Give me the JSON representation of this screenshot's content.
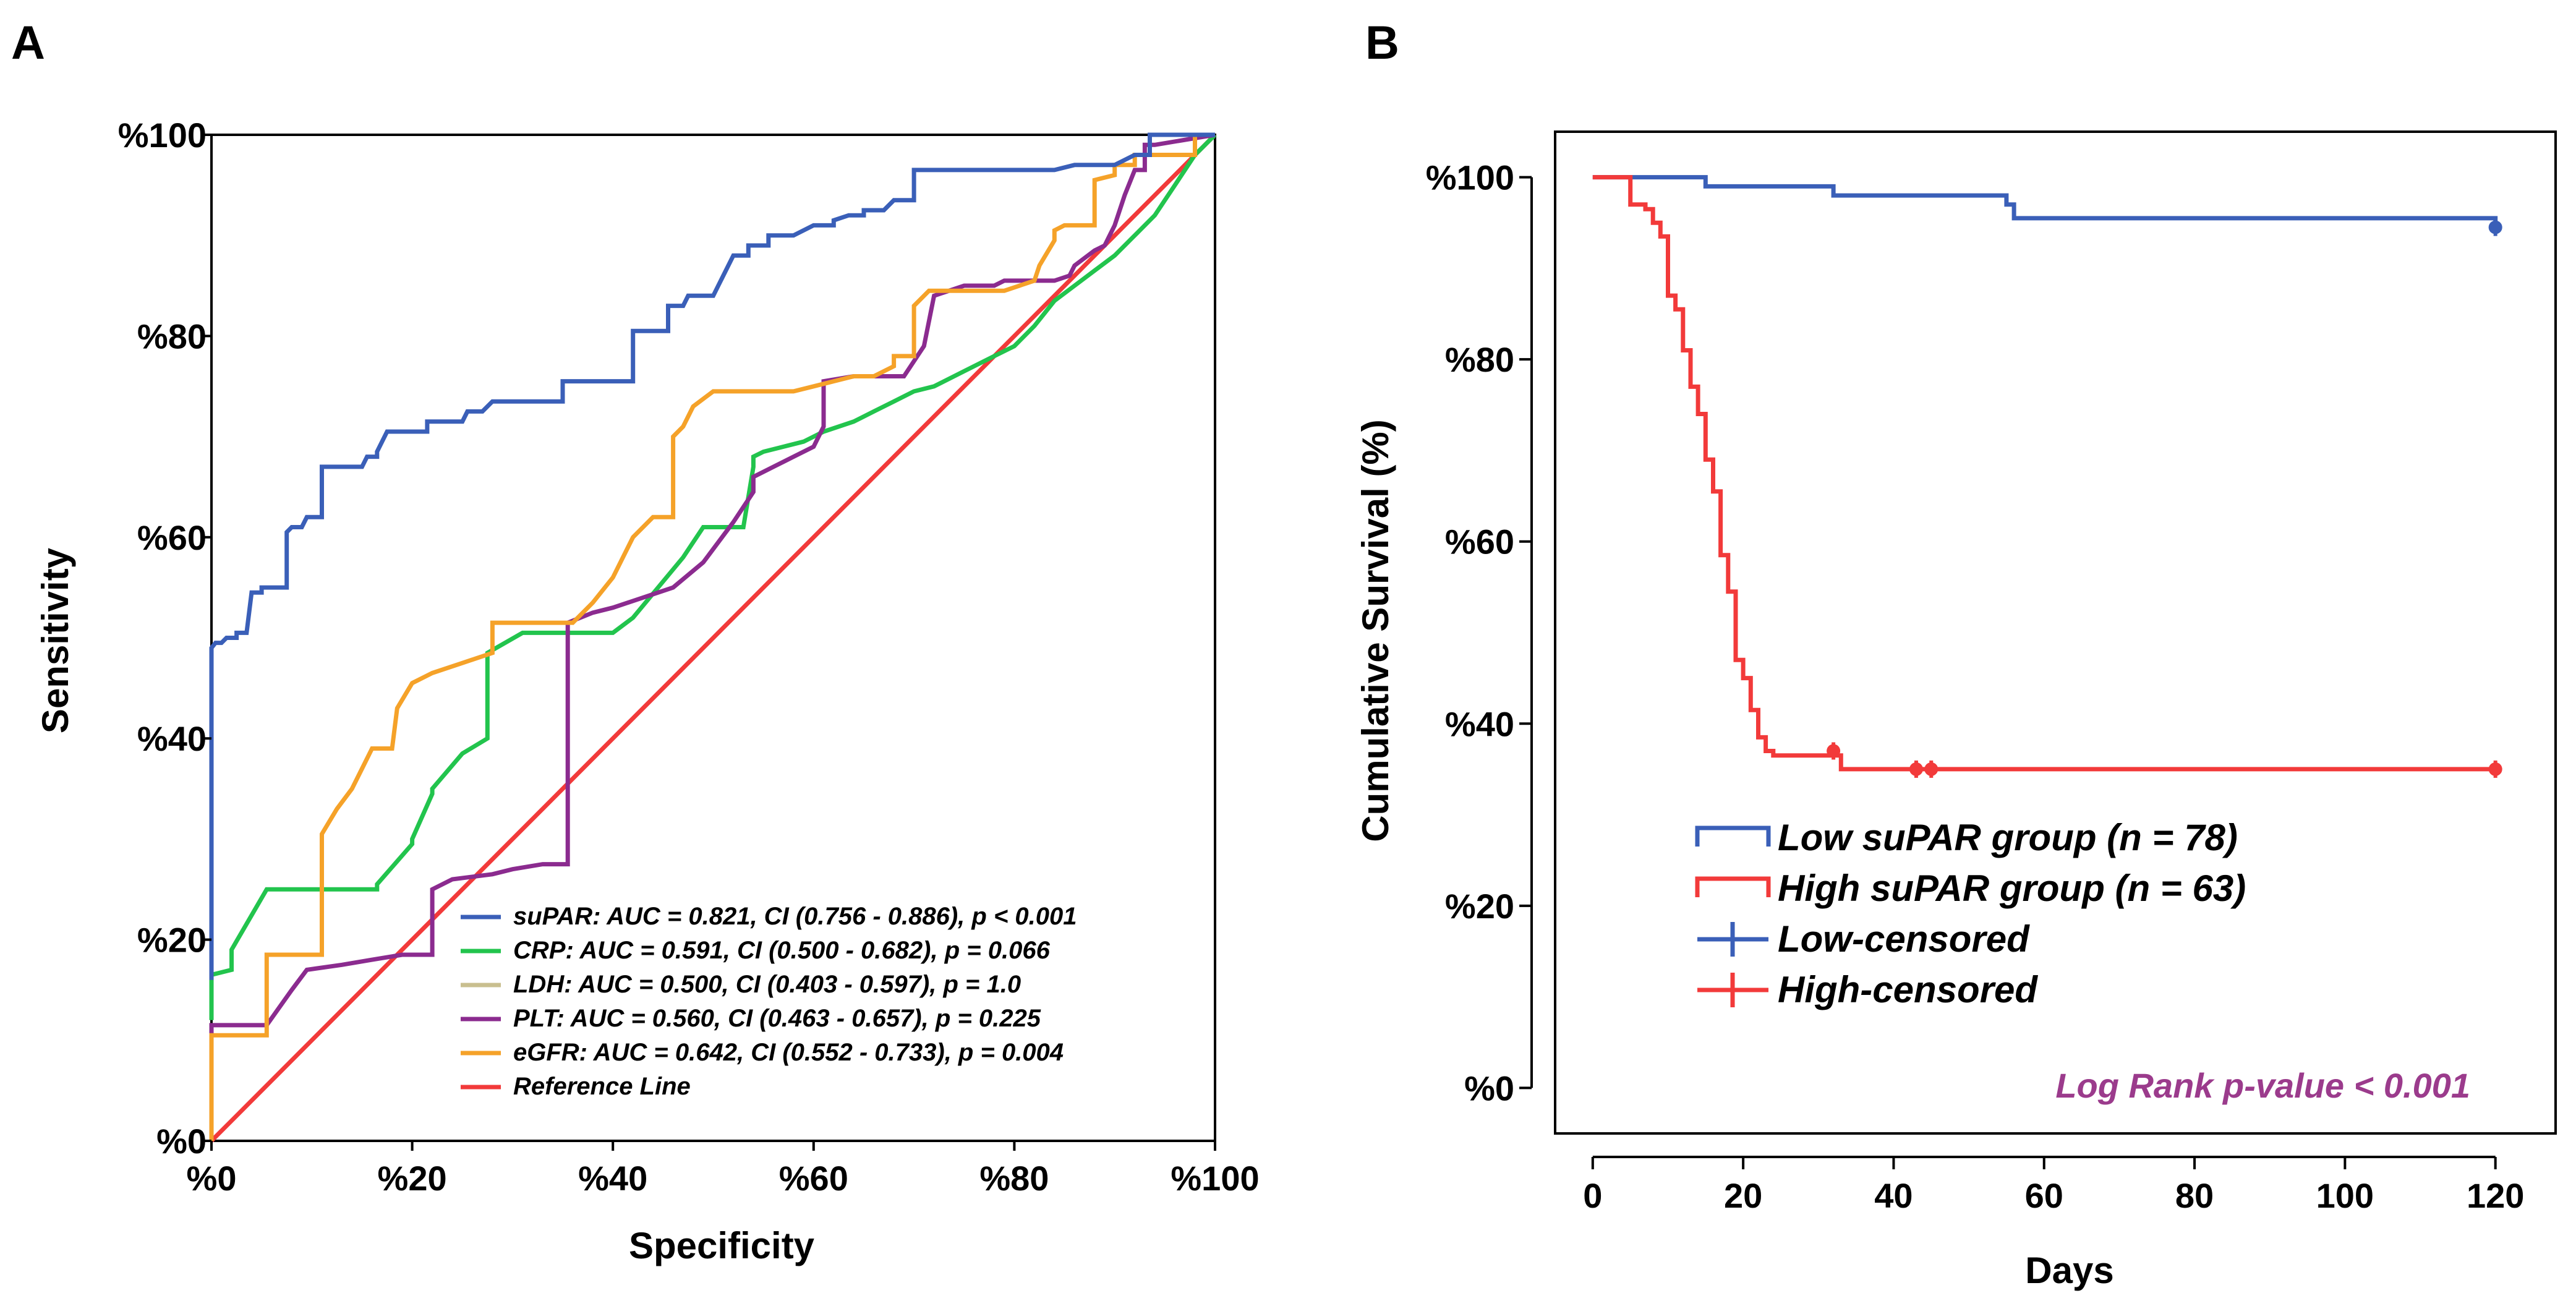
{
  "chart_data": [
    {
      "panel_label": "A",
      "type": "line",
      "subtype": "roc",
      "xlabel": "Specificity",
      "ylabel": "Sensitivity",
      "xlim": [
        0,
        100
      ],
      "ylim": [
        0,
        100
      ],
      "x_ticks": [
        0,
        20,
        40,
        60,
        80,
        100
      ],
      "y_ticks": [
        0,
        20,
        40,
        60,
        80,
        100
      ],
      "x_tick_labels": [
        "%0",
        "%20",
        "%40",
        "%60",
        "%80",
        "%100"
      ],
      "y_tick_labels": [
        "%0",
        "%20",
        "%40",
        "%60",
        "%80",
        "%100"
      ],
      "legend_position": "bottom-right",
      "series": [
        {
          "name": "suPAR",
          "legend": "suPAR: AUC = 0.821, CI (0.756 - 0.886), p < 0.001",
          "color": "#3a5fb8",
          "x": [
            0,
            0,
            0.4,
            1,
            1.5,
            2.5,
            2.5,
            3.5,
            4,
            5,
            5,
            6,
            7,
            7.5,
            7.5,
            8,
            9,
            9.5,
            9.5,
            11,
            11,
            13,
            15,
            15.5,
            16.5,
            16.5,
            17.5,
            18.5,
            20,
            21.5,
            21.5,
            24,
            25,
            25.5,
            26.5,
            27,
            28,
            29,
            31,
            33,
            34,
            35,
            35,
            38,
            40,
            42,
            42,
            42.5,
            44,
            45.5,
            45.5,
            47,
            47.5,
            48,
            50,
            50.5,
            51,
            52,
            52.5,
            53.5,
            53.5,
            55.5,
            55.5,
            58,
            58,
            60,
            62,
            62,
            63.5,
            65,
            65,
            67,
            68,
            70,
            70,
            72,
            74,
            76,
            78,
            80,
            82,
            84,
            86,
            88,
            90,
            92,
            93,
            93.5,
            93.5,
            100
          ],
          "y": [
            16,
            49,
            49.5,
            49.5,
            50,
            50,
            50.5,
            50.5,
            54.5,
            54.5,
            55,
            55,
            55,
            55,
            60.5,
            61,
            61,
            62,
            62,
            62,
            67,
            67,
            67,
            68,
            68,
            68.5,
            70.5,
            70.5,
            70.5,
            70.5,
            71.5,
            71.5,
            71.5,
            72.5,
            72.5,
            72.5,
            73.5,
            73.5,
            73.5,
            73.5,
            73.5,
            73.5,
            75.5,
            75.5,
            75.5,
            75.5,
            80.5,
            80.5,
            80.5,
            80.5,
            83,
            83,
            84,
            84,
            84,
            85,
            86,
            88,
            88,
            88,
            89,
            89,
            90,
            90,
            90,
            91,
            91,
            91.5,
            92,
            92,
            92.5,
            92.5,
            93.5,
            93.5,
            96.5,
            96.5,
            96.5,
            96.5,
            96.5,
            96.5,
            96.5,
            96.5,
            97,
            97,
            97,
            98,
            98,
            98,
            100,
            100
          ]
        },
        {
          "name": "CRP",
          "legend": "CRP: AUC = 0.591, CI (0.500 - 0.682), p = 0.066",
          "color": "#22c44d",
          "x": [
            0,
            0,
            2,
            2,
            5.5,
            11,
            16.5,
            16.5,
            20,
            20,
            22,
            22,
            25,
            27.5,
            27.5,
            31,
            31,
            34,
            36,
            38,
            40,
            42,
            47,
            49,
            51,
            53,
            53,
            54,
            54,
            55,
            57,
            59,
            61,
            64,
            66,
            68,
            70,
            72,
            75,
            78,
            80,
            82,
            84,
            86,
            88,
            90,
            92,
            94,
            95,
            96,
            97,
            98,
            99,
            100
          ],
          "y": [
            12,
            16.5,
            17,
            19,
            25,
            25,
            25,
            25.5,
            29.5,
            30,
            34.5,
            35,
            38.5,
            40,
            48.5,
            50.5,
            50.5,
            50.5,
            50.5,
            50.5,
            50.5,
            52,
            58,
            61,
            61,
            61,
            61,
            67,
            68,
            68.5,
            69,
            69.5,
            70.5,
            71.5,
            72.5,
            73.5,
            74.5,
            75,
            76.5,
            78,
            79,
            81,
            83.5,
            85,
            86.5,
            88,
            90,
            92,
            93.5,
            95,
            96.5,
            98,
            99,
            100
          ]
        },
        {
          "name": "LDH",
          "legend": "LDH: AUC = 0.500, CI (0.403 - 0.597), p = 1.0",
          "color": "#c9bf8f",
          "x": [
            0,
            100
          ],
          "y": [
            0,
            100
          ]
        },
        {
          "name": "PLT",
          "legend": "PLT: AUC = 0.560, CI (0.463 - 0.657), p = 0.225",
          "color": "#8b2b8f",
          "x": [
            0,
            0,
            5.5,
            8,
            9.5,
            13,
            16,
            19,
            22,
            22,
            24,
            28,
            30,
            33,
            35.5,
            35.5,
            38,
            40,
            43,
            46,
            49,
            52,
            54,
            54,
            56,
            58,
            60,
            61,
            61,
            64,
            66,
            69,
            71,
            72,
            75,
            78,
            79,
            82,
            84,
            85.5,
            86,
            88,
            89,
            90,
            91,
            92,
            93,
            93,
            94,
            100
          ],
          "y": [
            5,
            11.5,
            11.5,
            15,
            17,
            17.5,
            18,
            18.5,
            18.5,
            25,
            26,
            26.5,
            27,
            27.5,
            27.5,
            51.5,
            52.5,
            53,
            54,
            55,
            57.5,
            61.5,
            64.5,
            66,
            67,
            68,
            69,
            71,
            75.5,
            76,
            76,
            76,
            79,
            84,
            85,
            85,
            85.5,
            85.5,
            85.5,
            86,
            87,
            88.5,
            89,
            91,
            94,
            96.5,
            96.5,
            99,
            99,
            100
          ]
        },
        {
          "name": "eGFR",
          "legend": "eGFR: AUC = 0.642, CI (0.552 - 0.733), p = 0.004",
          "color": "#f5a229",
          "x": [
            0,
            0,
            5.5,
            5.5,
            8,
            11,
            11,
            12.5,
            14,
            15,
            16,
            18,
            18.5,
            20,
            22,
            25,
            28,
            28,
            32,
            34,
            36,
            38,
            40,
            42,
            44,
            46,
            46,
            47,
            48,
            50,
            52,
            54,
            56,
            58,
            60,
            62,
            64,
            66,
            68,
            68,
            70,
            70,
            71.5,
            72,
            76,
            79,
            82,
            82.5,
            84,
            84,
            85,
            86,
            88,
            88,
            90,
            90,
            92,
            92,
            95,
            95,
            98,
            98,
            100
          ],
          "y": [
            0,
            10.5,
            10.5,
            18.5,
            18.5,
            18.5,
            30.5,
            33,
            35,
            37,
            39,
            39,
            43,
            45.5,
            46.5,
            47.5,
            48.5,
            51.5,
            51.5,
            51.5,
            51.5,
            53.5,
            56,
            60,
            62,
            62,
            70,
            71,
            73,
            74.5,
            74.5,
            74.5,
            74.5,
            74.5,
            75,
            75.5,
            76,
            76,
            77,
            78,
            78,
            83,
            84.5,
            84.5,
            84.5,
            84.5,
            85.5,
            87,
            89.5,
            90.5,
            91,
            91,
            91,
            95.5,
            96,
            97,
            97,
            98,
            98,
            98,
            98,
            100,
            100
          ]
        },
        {
          "name": "Reference Line",
          "legend": "Reference Line",
          "color": "#f23a3a",
          "x": [
            0,
            100
          ],
          "y": [
            0,
            100
          ]
        }
      ]
    },
    {
      "panel_label": "B",
      "type": "line",
      "subtype": "kaplan-meier",
      "xlabel": "Days",
      "ylabel": "Cumulative Survival (%)",
      "xlim": [
        -5,
        128
      ],
      "ylim": [
        -5,
        105
      ],
      "x_ticks": [
        0,
        20,
        40,
        60,
        80,
        100,
        120
      ],
      "y_ticks": [
        0,
        20,
        40,
        60,
        80,
        100
      ],
      "x_tick_labels": [
        "0",
        "20",
        "40",
        "60",
        "80",
        "100",
        "120"
      ],
      "y_tick_labels": [
        "%0",
        "%20",
        "%40",
        "%60",
        "%80",
        "%100"
      ],
      "annotation": "Log Rank p-value < 0.001",
      "annotation_color": "#9b3b8c",
      "legend_position": "bottom-left",
      "legend": [
        {
          "label": "Low suPAR group (n = 78)",
          "kind": "step",
          "color": "#3a5fb8"
        },
        {
          "label": "High suPAR group (n = 63)",
          "kind": "step",
          "color": "#f23a3a"
        },
        {
          "label": "Low-censored",
          "kind": "censor",
          "color": "#3a5fb8"
        },
        {
          "label": "High-censored",
          "kind": "censor",
          "color": "#f23a3a"
        }
      ],
      "series": [
        {
          "name": "Low suPAR group (n = 78)",
          "color": "#3a5fb8",
          "x": [
            0,
            10,
            15,
            32,
            55,
            56,
            120
          ],
          "y": [
            100,
            100,
            99,
            98,
            97,
            95.5,
            95
          ],
          "censored": [
            {
              "x": 120,
              "y": 94.5
            }
          ]
        },
        {
          "name": "High suPAR group (n = 63)",
          "color": "#f23a3a",
          "x": [
            0,
            5,
            6,
            7,
            8,
            9,
            10,
            11,
            12,
            13,
            14,
            15,
            16,
            17,
            18,
            19,
            20,
            21,
            22,
            23,
            24,
            33,
            120
          ],
          "y": [
            100,
            97,
            97,
            96.5,
            95,
            93.5,
            87,
            85.5,
            81,
            77,
            74,
            69,
            65.5,
            58.5,
            54.5,
            47,
            45,
            41.5,
            38.5,
            37,
            36.5,
            35,
            35
          ],
          "censored": [
            {
              "x": 32,
              "y": 37
            },
            {
              "x": 43,
              "y": 35
            },
            {
              "x": 45,
              "y": 35
            },
            {
              "x": 120,
              "y": 35
            }
          ]
        }
      ]
    }
  ]
}
